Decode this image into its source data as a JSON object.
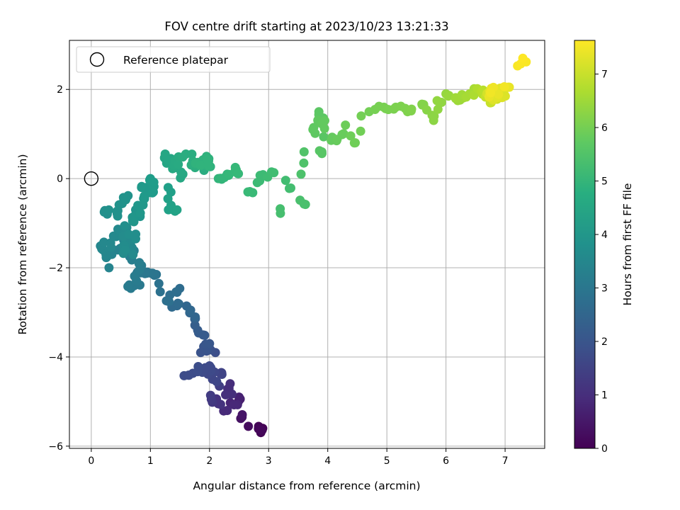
{
  "chart_data": {
    "type": "scatter",
    "title": "FOV centre drift starting at 2023/10/23 13:21:33",
    "xlabel": "Angular distance from reference (arcmin)",
    "ylabel": "Rotation from reference (arcmin)",
    "xlim": [
      -0.37,
      7.67
    ],
    "ylim": [
      -6.05,
      3.1
    ],
    "xticks": [
      0,
      1,
      2,
      3,
      4,
      5,
      6,
      7
    ],
    "yticks": [
      -6,
      -4,
      -2,
      0,
      2
    ],
    "grid": true,
    "legend": {
      "position": "top-left",
      "entries": [
        "Reference platepar"
      ]
    },
    "reference_point": {
      "x": 0,
      "y": 0,
      "label": "Reference platepar"
    },
    "colorbar": {
      "label": "Hours from first FF file",
      "min": 0,
      "max": 7.63,
      "ticks": [
        0,
        1,
        2,
        3,
        4,
        5,
        6,
        7
      ],
      "colormap": "viridis"
    },
    "anchors": [
      [
        2.9,
        -5.6,
        0.0
      ],
      [
        2.88,
        -5.65,
        0.1
      ],
      [
        2.55,
        -5.35,
        0.35
      ],
      [
        2.5,
        -4.9,
        0.7
      ],
      [
        2.3,
        -5.2,
        0.9
      ],
      [
        2.33,
        -4.7,
        1.0
      ],
      [
        2.15,
        -5.05,
        1.1
      ],
      [
        2.03,
        -4.95,
        1.3
      ],
      [
        2.2,
        -4.35,
        1.5
      ],
      [
        2.05,
        -4.5,
        1.6
      ],
      [
        2.0,
        -4.2,
        1.7
      ],
      [
        1.57,
        -4.42,
        1.75
      ],
      [
        2.1,
        -3.9,
        1.85
      ],
      [
        1.85,
        -3.9,
        1.95
      ],
      [
        2.0,
        -3.7,
        2.05
      ],
      [
        1.8,
        -3.4,
        2.2
      ],
      [
        1.75,
        -3.15,
        2.35
      ],
      [
        1.68,
        -2.95,
        2.5
      ],
      [
        1.45,
        -2.85,
        2.6
      ],
      [
        1.45,
        -2.55,
        2.7
      ],
      [
        1.3,
        -2.75,
        2.8
      ],
      [
        1.1,
        -2.15,
        2.9
      ],
      [
        0.95,
        -2.1,
        3.0
      ],
      [
        0.78,
        -2.1,
        3.05
      ],
      [
        0.72,
        -2.4,
        3.1
      ],
      [
        0.62,
        -2.42,
        3.15
      ],
      [
        0.85,
        -1.95,
        3.2
      ],
      [
        0.65,
        -1.75,
        3.3
      ],
      [
        0.45,
        -1.6,
        3.4
      ],
      [
        0.3,
        -2.0,
        3.45
      ],
      [
        0.25,
        -1.7,
        3.5
      ],
      [
        0.18,
        -1.5,
        3.55
      ],
      [
        0.42,
        -1.3,
        3.6
      ],
      [
        0.6,
        -1.1,
        3.65
      ],
      [
        0.55,
        -1.5,
        3.7
      ],
      [
        0.75,
        -1.35,
        3.75
      ],
      [
        0.22,
        -0.75,
        3.8
      ],
      [
        0.45,
        -0.72,
        3.85
      ],
      [
        0.58,
        -0.45,
        3.9
      ],
      [
        0.75,
        -0.7,
        3.95
      ],
      [
        0.7,
        -0.95,
        4.0
      ],
      [
        0.9,
        -0.45,
        4.05
      ],
      [
        0.85,
        -0.2,
        4.1
      ],
      [
        1.05,
        -0.3,
        4.15
      ],
      [
        1.0,
        0.0,
        4.2
      ],
      [
        1.3,
        -0.2,
        4.3
      ],
      [
        1.35,
        -0.6,
        4.35
      ],
      [
        1.45,
        -0.7,
        4.4
      ],
      [
        1.25,
        0.55,
        4.5
      ],
      [
        1.55,
        0.1,
        4.55
      ],
      [
        1.4,
        0.3,
        4.6
      ],
      [
        1.6,
        0.55,
        4.7
      ],
      [
        1.8,
        0.35,
        4.8
      ],
      [
        1.95,
        0.5,
        4.9
      ],
      [
        2.15,
        0.0,
        5.0
      ],
      [
        2.3,
        0.1,
        5.05
      ],
      [
        2.45,
        0.2,
        5.1
      ],
      [
        2.65,
        -0.3,
        5.15
      ],
      [
        2.85,
        -0.05,
        5.2
      ],
      [
        3.05,
        0.15,
        5.25
      ],
      [
        3.35,
        -0.22,
        5.3
      ],
      [
        3.2,
        -0.78,
        5.35
      ],
      [
        3.6,
        -0.57,
        5.4
      ],
      [
        3.6,
        0.6,
        5.5
      ],
      [
        3.9,
        0.6,
        5.6
      ],
      [
        3.85,
        1.5,
        5.65
      ],
      [
        3.75,
        1.1,
        5.7
      ],
      [
        3.95,
        1.3,
        5.75
      ],
      [
        4.15,
        0.85,
        5.8
      ],
      [
        4.3,
        1.2,
        5.9
      ],
      [
        4.45,
        0.8,
        5.95
      ],
      [
        4.7,
        1.5,
        6.0
      ],
      [
        4.95,
        1.6,
        6.05
      ],
      [
        5.15,
        1.6,
        6.1
      ],
      [
        5.35,
        1.5,
        6.15
      ],
      [
        5.6,
        1.65,
        6.2
      ],
      [
        5.8,
        1.4,
        6.3
      ],
      [
        6.0,
        1.9,
        6.4
      ],
      [
        6.2,
        1.75,
        6.5
      ],
      [
        6.4,
        1.9,
        6.6
      ],
      [
        6.6,
        1.95,
        6.8
      ],
      [
        6.75,
        1.7,
        7.0
      ],
      [
        6.9,
        1.9,
        7.2
      ],
      [
        7.05,
        2.05,
        7.4
      ],
      [
        7.3,
        2.7,
        7.63
      ]
    ]
  }
}
